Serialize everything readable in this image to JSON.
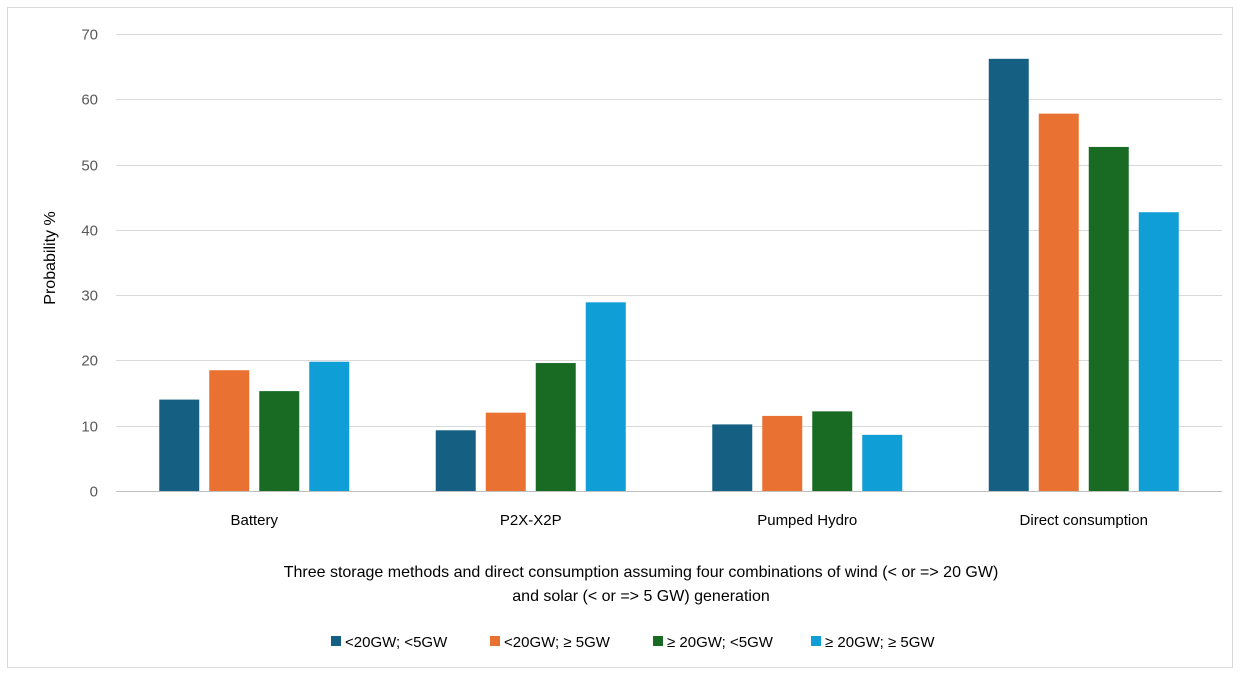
{
  "chart_data": {
    "type": "bar",
    "title": "",
    "categories": [
      "Battery",
      "P2X-X2P",
      "Pumped Hydro",
      "Direct consumption"
    ],
    "series": [
      {
        "name": "<20GW; <5GW",
        "color": "#156082",
        "values": [
          14.0,
          9.3,
          10.2,
          66.2
        ]
      },
      {
        "name": "<20GW; ≥ 5GW",
        "color": "#E97132",
        "values": [
          18.5,
          12.0,
          11.5,
          57.8
        ]
      },
      {
        "name": "≥ 20GW; <5GW",
        "color": "#196B24",
        "values": [
          15.3,
          19.6,
          12.2,
          52.7
        ]
      },
      {
        "name": "≥ 20GW; ≥ 5GW",
        "color": "#0F9ED5",
        "values": [
          19.8,
          28.9,
          8.6,
          42.7
        ]
      }
    ],
    "ylabel": "Probability  %",
    "xlabel_lines": [
      "Three storage methods and direct consumption assuming four combinations of wind (< or => 20 GW)",
      "and solar (< or => 5 GW) generation"
    ],
    "ylim": [
      0,
      70
    ],
    "yticks": [
      0,
      10,
      20,
      30,
      40,
      50,
      60,
      70
    ],
    "grid": true,
    "legend_position": "bottom"
  }
}
